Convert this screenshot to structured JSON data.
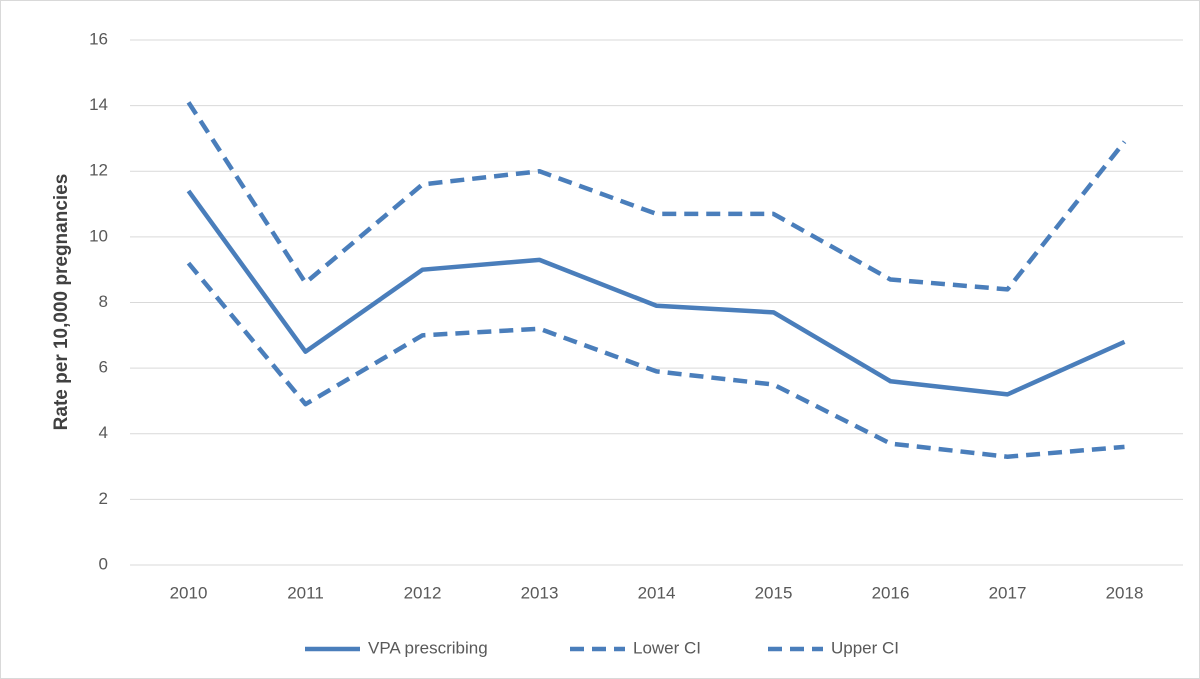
{
  "chart_data": {
    "type": "line",
    "y_label": "Rate per 10,000 pregnancies",
    "categories": [
      "2010",
      "2011",
      "2012",
      "2013",
      "2014",
      "2015",
      "2016",
      "2017",
      "2018"
    ],
    "series": [
      {
        "name": "VPA prescribing",
        "color": "#4a7ebb",
        "line_style": "solid",
        "values": [
          11.4,
          6.5,
          9.0,
          9.3,
          7.9,
          7.7,
          5.6,
          5.2,
          6.8
        ]
      },
      {
        "name": "Lower CI",
        "color": "#4a7ebb",
        "line_style": "dashed",
        "values": [
          9.2,
          4.9,
          7.0,
          7.2,
          5.9,
          5.5,
          3.7,
          3.3,
          3.6
        ]
      },
      {
        "name": "Upper CI",
        "color": "#4a7ebb",
        "line_style": "dashed",
        "values": [
          14.1,
          8.6,
          11.6,
          12.0,
          10.7,
          10.7,
          8.7,
          8.4,
          12.9
        ]
      }
    ],
    "ylim": [
      0,
      16
    ],
    "yticks": [
      0,
      2,
      4,
      6,
      8,
      10,
      12,
      14,
      16
    ],
    "grid": true,
    "legend": "bottom"
  }
}
